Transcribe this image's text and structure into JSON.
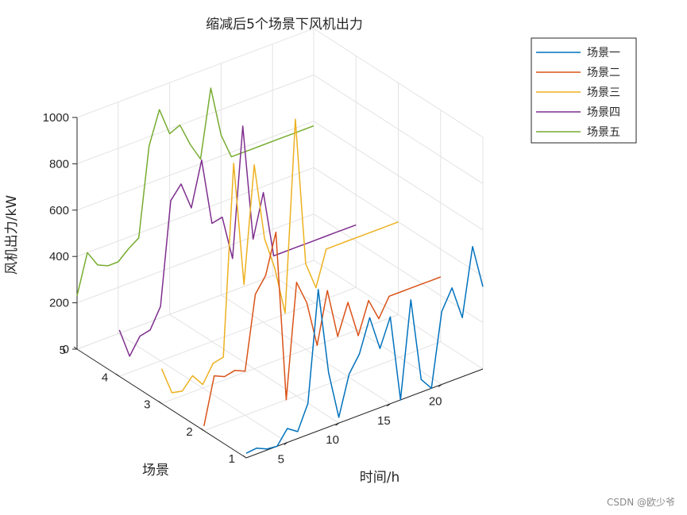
{
  "watermark": "CSDN @欧少爷",
  "chart_data": {
    "type": "line",
    "title": "缩减后5个场景下风机出力",
    "xlabel": "时间/h",
    "ylabel": "场景",
    "zlabel": "风机出力/kW",
    "xlim": [
      1,
      24
    ],
    "ylim": [
      1,
      5
    ],
    "zlim": [
      0,
      1000
    ],
    "x_ticks": [
      "5",
      "10",
      "15",
      "20"
    ],
    "y_ticks": [
      "1",
      "2",
      "3",
      "4",
      "5"
    ],
    "z_ticks": [
      "0",
      "200",
      "400",
      "600",
      "800",
      "1000"
    ],
    "grid": true,
    "legend_position": "top-right",
    "x": [
      1,
      2,
      3,
      4,
      5,
      6,
      7,
      8,
      9,
      10,
      11,
      12,
      13,
      14,
      15,
      16,
      17,
      18,
      19,
      20,
      21,
      22,
      23,
      24
    ],
    "series": [
      {
        "name": "场景一",
        "color": "#0072BD",
        "values": [
          20,
          25,
          5,
          0,
          60,
          30,
          135,
          610,
          235,
          25,
          195,
          265,
          405,
          255,
          375,
          0,
          415,
          55,
          0,
          315,
          400,
          255,
          545,
          355
        ]
      },
      {
        "name": "场景二",
        "color": "#D95319",
        "values": [
          20,
          220,
          200,
          210,
          190,
          505,
          570,
          740,
          0,
          490,
          385,
          185,
          405,
          190,
          320,
          160,
          295,
          200,
          280,
          280,
          280,
          280,
          280,
          280
        ]
      },
      {
        "name": "场景三",
        "color": "#EDB120",
        "values": [
          150,
          30,
          20,
          70,
          15,
          90,
          100,
          920,
          380,
          880,
          545,
          400,
          190,
          1010,
          370,
          250,
          400,
          400,
          400,
          400,
          400,
          400,
          400,
          400
        ]
      },
      {
        "name": "场景四",
        "color": "#7E2F8E",
        "values": [
          200,
          70,
          140,
          150,
          235,
          675,
          730,
          610,
          800,
          510,
          520,
          325,
          880,
          375,
          560,
          270,
          270,
          270,
          270,
          270,
          270,
          270,
          270,
          270
        ]
      },
      {
        "name": "场景五",
        "color": "#77AC30",
        "values": [
          230,
          400,
          330,
          310,
          310,
          350,
          380,
          760,
          900,
          780,
          800,
          700,
          620,
          910,
          690,
          580,
          580,
          580,
          580,
          580,
          580,
          580,
          580,
          580
        ]
      }
    ]
  }
}
